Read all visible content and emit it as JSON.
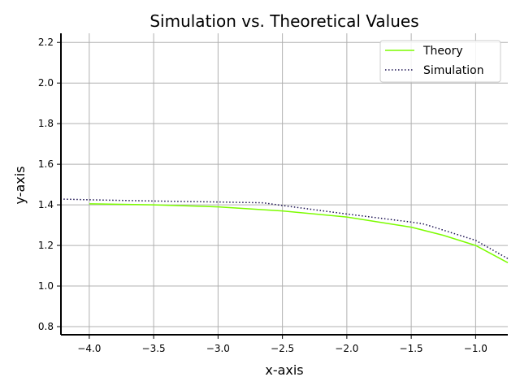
{
  "chart_data": {
    "type": "line",
    "title": "Simulation vs. Theoretical Values",
    "xlabel": "x-axis",
    "ylabel": "y-axis",
    "xlim": [
      -4.22,
      -0.75
    ],
    "ylim": [
      0.76,
      2.245
    ],
    "xticks": [
      -4.0,
      -3.5,
      -3.0,
      -2.5,
      -2.0,
      -1.5,
      -1.0
    ],
    "xtick_labels": [
      "−4.0",
      "−3.5",
      "−3.0",
      "−2.5",
      "−2.0",
      "−1.5",
      "−1.0"
    ],
    "yticks": [
      0.8,
      1.0,
      1.2,
      1.4,
      1.6,
      1.8,
      2.0,
      2.2
    ],
    "ytick_labels": [
      "0.8",
      "1.0",
      "1.2",
      "1.4",
      "1.6",
      "1.8",
      "2.0",
      "2.2"
    ],
    "grid": true,
    "legend_position": "top-right",
    "series": [
      {
        "name": "Theory",
        "color": "#7cfc00",
        "style": "solid",
        "x": [
          -4.0,
          -3.5,
          -3.0,
          -2.5,
          -2.0,
          -1.5,
          -1.25,
          -1.0,
          -0.75
        ],
        "y": [
          1.405,
          1.4,
          1.39,
          1.37,
          1.34,
          1.29,
          1.25,
          1.2,
          1.115
        ]
      },
      {
        "name": "Simulation",
        "color": "#1a1050",
        "style": "dotted",
        "x": [
          -4.2,
          -4.0,
          -3.5,
          -3.0,
          -2.65,
          -2.5,
          -2.0,
          -1.5,
          -1.4,
          -1.0,
          -0.75
        ],
        "y": [
          1.428,
          1.425,
          1.419,
          1.414,
          1.41,
          1.397,
          1.355,
          1.315,
          1.305,
          1.225,
          1.135
        ]
      }
    ]
  }
}
